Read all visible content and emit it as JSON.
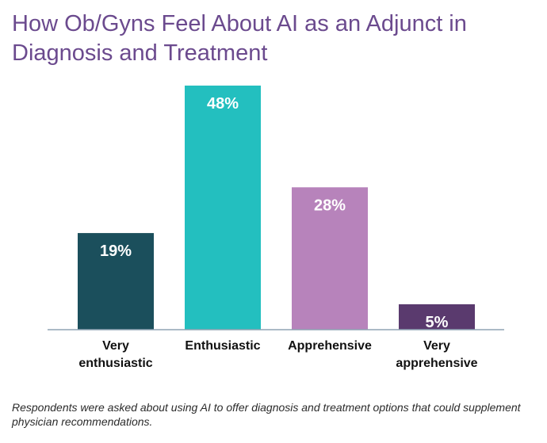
{
  "chart_data": {
    "type": "bar",
    "title": "How Ob/Gyns Feel About AI as an Adjunct in Diagnosis and Treatment",
    "categories": [
      [
        "Very",
        "enthusiastic"
      ],
      [
        "Enthusiastic"
      ],
      [
        "Apprehensive"
      ],
      [
        "Very",
        "apprehensive"
      ]
    ],
    "values": [
      19,
      48,
      28,
      5
    ],
    "value_labels": [
      "19%",
      "48%",
      "28%",
      "5%"
    ],
    "colors": [
      "#1b4f5c",
      "#23bfbf",
      "#b783bb",
      "#5a3a6e"
    ],
    "ylim": [
      0,
      48
    ],
    "grid": false,
    "legend": "none"
  },
  "footnote": "Respondents were asked about using AI to offer diagnosis and treatment options that could supplement physician recommendations."
}
